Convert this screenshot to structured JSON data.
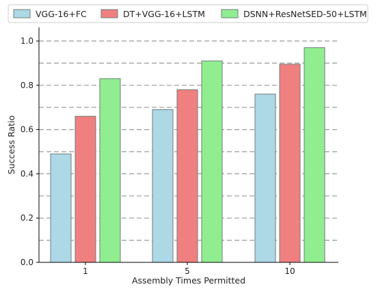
{
  "chart_data": {
    "type": "bar",
    "categories": [
      "1",
      "5",
      "10"
    ],
    "series": [
      {
        "name": "VGG-16+FC",
        "values": [
          0.49,
          0.69,
          0.76
        ],
        "color": "#add8e6"
      },
      {
        "name": "DT+VGG-16+LSTM",
        "values": [
          0.66,
          0.78,
          0.895
        ],
        "color": "#f08080"
      },
      {
        "name": "DSNN+ResNetSED-50+LSTM",
        "values": [
          0.83,
          0.91,
          0.97
        ],
        "color": "#90ee90"
      }
    ],
    "xlabel": "Assembly Times Permitted",
    "ylabel": "Success Ratio",
    "ylim": [
      0,
      1.0
    ],
    "yticks": [
      "0.0",
      "0.2",
      "0.4",
      "0.6",
      "0.8",
      "1.0"
    ],
    "grid": "horizontal dashed at 0.1 intervals",
    "legend": "top, horizontal"
  }
}
